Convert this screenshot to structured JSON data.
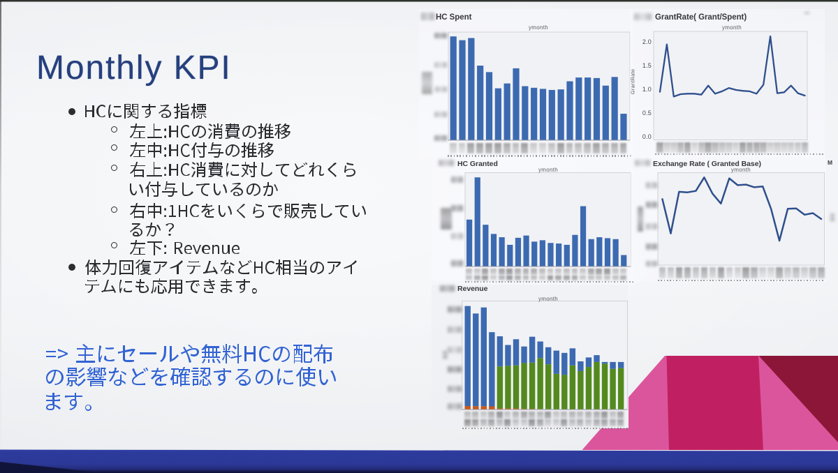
{
  "slide": {
    "title": "Monthly KPI",
    "bullets": [
      {
        "level": 1,
        "lines": [
          "HCに関する指標"
        ]
      },
      {
        "level": 2,
        "lines": [
          "左上:HCの消費の推移"
        ]
      },
      {
        "level": 2,
        "lines": [
          "左中:HC付与の推移"
        ]
      },
      {
        "level": 2,
        "lines": [
          "右上:HC消費に対してどれくら",
          "い付与しているのか"
        ]
      },
      {
        "level": 2,
        "lines": [
          "右中:1HCをいくらで販売してい",
          "るか？"
        ]
      },
      {
        "level": 2,
        "lines": [
          "左下: Revenue"
        ]
      },
      {
        "level": 1,
        "lines": [
          "体力回復アイテムなどHC相当のアイ",
          "テムにも応用できます。"
        ]
      }
    ],
    "note_lines": [
      "=> 主にセールや無料HCの配布",
      "の影響などを確認するのに使い",
      "ます。"
    ]
  },
  "chart_data": [
    {
      "type": "bar",
      "title": "HC Spent",
      "xlabel_top": "ymonth",
      "ylabel": "censored",
      "xtick_labels": "censored",
      "ytick_labels": "censored",
      "n_categories": 20,
      "values_relative": [
        0.96,
        0.925,
        0.945,
        0.69,
        0.63,
        0.48,
        0.525,
        0.665,
        0.5,
        0.485,
        0.475,
        0.465,
        0.47,
        0.545,
        0.58,
        0.58,
        0.575,
        0.505,
        0.585,
        0.245
      ]
    },
    {
      "type": "line",
      "title": "GrantRate( Grant/Spent)",
      "xlabel_top": "ymonth",
      "ylabel": "GrantRate",
      "yticks": [
        "2.0",
        "1.5",
        "1.0",
        "0.5",
        "0.0"
      ],
      "ylim": [
        0.0,
        2.25
      ],
      "xtick_labels": "censored",
      "values": [
        0.94,
        1.94,
        0.84,
        0.89,
        0.9,
        0.9,
        0.88,
        1.07,
        0.9,
        0.95,
        1.02,
        0.98,
        0.96,
        0.95,
        0.9,
        1.09,
        2.11,
        0.91,
        0.93,
        1.07,
        0.91,
        0.86
      ]
    },
    {
      "type": "bar",
      "title": "HC Granted",
      "xlabel_top": "ymonth",
      "ylabel": "censored",
      "xtick_labels": "censored",
      "ytick_labels": "censored",
      "n_categories": 20,
      "values_relative": [
        0.5,
        0.95,
        0.445,
        0.347,
        0.312,
        0.231,
        0.306,
        0.33,
        0.265,
        0.28,
        0.251,
        0.245,
        0.231,
        0.337,
        0.643,
        0.292,
        0.312,
        0.302,
        0.292,
        0.122
      ]
    },
    {
      "type": "line",
      "title": "Exchange Rate ( Granted Base)",
      "xlabel_top": "ymonth",
      "ylabel": "censored",
      "ytick_labels": "censored",
      "xtick_labels": "censored",
      "corner_label": "M",
      "values_relative": [
        0.714,
        0.343,
        0.793,
        0.787,
        0.802,
        0.949,
        0.773,
        0.666,
        0.939,
        0.865,
        0.871,
        0.842,
        0.851,
        0.607,
        0.264,
        0.61,
        0.613,
        0.545,
        0.562,
        0.499
      ]
    },
    {
      "type": "stacked_bar",
      "title": "Revenue",
      "xlabel_top": "ymonth",
      "ylabel": "censored",
      "xtick_labels": "censored",
      "ytick_labels": "censored",
      "n_categories": 20,
      "series": [
        {
          "name": "orange-segment",
          "values_relative": [
            0.032,
            0.03,
            0.031,
            0.029,
            0.01,
            0.01,
            0.01,
            0.006,
            0.006,
            0.005,
            0.004,
            0,
            0,
            0,
            0,
            0,
            0,
            0,
            0,
            0
          ]
        },
        {
          "name": "green-segment",
          "values_relative": [
            0,
            0,
            0,
            0,
            0.387,
            0.393,
            0.397,
            0.422,
            0.426,
            0.469,
            0.413,
            0.329,
            0.319,
            0.407,
            0.354,
            0.392,
            0.438,
            0.423,
            0.375,
            0.382
          ]
        },
        {
          "name": "blue-segment",
          "values_relative": [
            0.922,
            0.855,
            0.91,
            0.684,
            0.278,
            0.192,
            0.241,
            0.153,
            0.239,
            0.153,
            0.157,
            0.214,
            0.203,
            0.157,
            0.09,
            0.088,
            0.063,
            0.015,
            0.063,
            0.056
          ]
        }
      ]
    }
  ],
  "colors": {
    "slide_bg": "#edeef2",
    "title_text": "#26407e",
    "body_text": "#2c2c31",
    "note_text": "#3263d3",
    "chart_title_text": "#38383d",
    "axis_text": "#46464c",
    "bar_blue": "#3c6ab1",
    "line_blue": "#2e4f8d",
    "revenue_green": "#538a1d",
    "revenue_orange": "#c8581b",
    "pink_light": "#db559c",
    "pink_crimson": "#c02061",
    "maroon_dark": "#8c1637",
    "footer_band_blue": "#2c3a99"
  }
}
